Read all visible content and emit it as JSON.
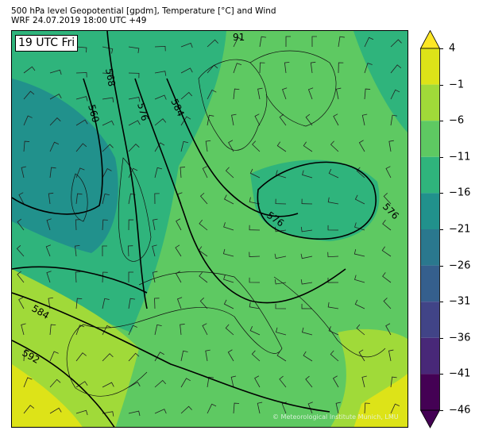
{
  "header": {
    "title_line1": "500 hPa level Geopotential [gpdm], Temperature [°C] and Wind",
    "title_line2": "WRF 24.07.2019 18:00 UTC +49"
  },
  "map": {
    "valid_time_label": "19 UTC Fri",
    "credit": "© Meteorological Institute Munich, LMU",
    "contour_labels": [
      "568",
      "560",
      "576",
      "584",
      "576",
      "576",
      "584",
      "592",
      "91"
    ]
  },
  "colorbar": {
    "ticks": [
      "4",
      "−1",
      "−6",
      "−11",
      "−16",
      "−21",
      "−26",
      "−31",
      "−36",
      "−41",
      "−46"
    ],
    "colors": [
      "#fde725",
      "#dde318",
      "#a0da39",
      "#5ec962",
      "#2fb47c",
      "#21918c",
      "#2a788e",
      "#355f8d",
      "#414487",
      "#482878",
      "#440154",
      "#440154"
    ]
  }
}
